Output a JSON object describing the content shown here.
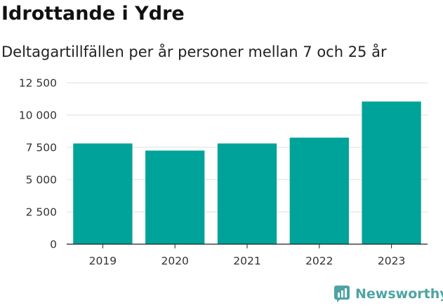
{
  "title": "Idrottande i Ydre",
  "subtitle": "Deltagartillfällen per år personer mellan 7 och 25 år",
  "brand": {
    "name": "Newsworthy",
    "icon": "newsworthy-logo-icon",
    "color": "#4fa3a3"
  },
  "colors": {
    "bar": "#00a39a",
    "grid": "#dddddd",
    "axis": "#222222"
  },
  "chart_data": {
    "type": "bar",
    "categories": [
      "2019",
      "2020",
      "2021",
      "2022",
      "2023"
    ],
    "values": [
      7800,
      7250,
      7800,
      8250,
      11050
    ],
    "title": "Idrottande i Ydre",
    "subtitle": "Deltagartillfällen per år personer mellan 7 och 25 år",
    "xlabel": "",
    "ylabel": "",
    "ylim": [
      0,
      12500
    ],
    "yticks": [
      0,
      2500,
      5000,
      7500,
      10000,
      12500
    ],
    "ytick_labels": [
      "0",
      "2 500",
      "5 000",
      "7 500",
      "10 000",
      "12 500"
    ],
    "grid": true,
    "legend": "none"
  }
}
